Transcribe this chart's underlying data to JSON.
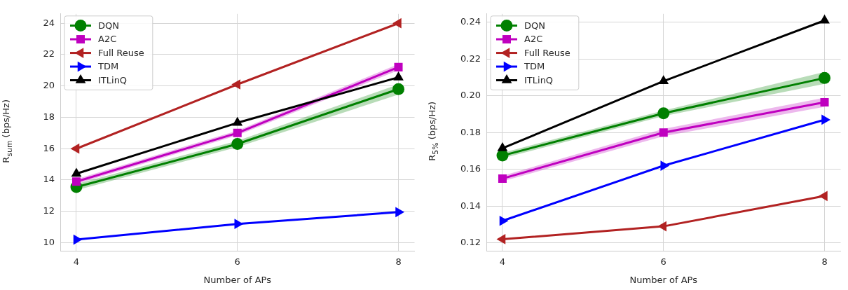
{
  "chart_data": [
    {
      "type": "line",
      "xlabel": "Number of APs",
      "ylabel": "R$_{sum}$ (bps/Hz)",
      "x": [
        4,
        6,
        8
      ],
      "xlim": [
        3.8,
        8.2
      ],
      "xticks": [
        4,
        6,
        8
      ],
      "ylim": [
        9.45,
        24.6
      ],
      "yticks": [
        10,
        12,
        14,
        16,
        18,
        20,
        22,
        24
      ],
      "grid": true,
      "legend": "top left",
      "line_style": "solid",
      "series": [
        {
          "name": "DQN",
          "color": "#008000",
          "marker": "circle",
          "values": [
            13.55,
            16.3,
            19.8
          ],
          "lower": [
            13.35,
            16.1,
            19.45
          ],
          "upper": [
            13.75,
            16.5,
            20.1
          ]
        },
        {
          "name": "A2C",
          "color": "#bf00bf",
          "marker": "square",
          "values": [
            13.9,
            17.0,
            21.2
          ],
          "lower": [
            13.75,
            16.85,
            21.0
          ],
          "upper": [
            14.05,
            17.15,
            21.4
          ]
        },
        {
          "name": "Full Reuse",
          "color": "#b22222",
          "marker": "triangle-left",
          "values": [
            16.0,
            20.1,
            24.0
          ]
        },
        {
          "name": "TDM",
          "color": "#0000ff",
          "marker": "triangle-right",
          "values": [
            10.2,
            11.2,
            11.95
          ]
        },
        {
          "name": "ITLinQ",
          "color": "#000000",
          "marker": "triangle",
          "values": [
            14.4,
            17.65,
            20.55
          ]
        }
      ]
    },
    {
      "type": "line",
      "xlabel": "Number of APs",
      "ylabel": "R$_{5%}$ (bps/Hz)",
      "x": [
        4,
        6,
        8
      ],
      "xlim": [
        3.8,
        8.2
      ],
      "xticks": [
        4,
        6,
        8
      ],
      "ylim": [
        0.1154,
        0.2446
      ],
      "yticks": [
        0.12,
        0.14,
        0.16,
        0.18,
        {
          "value": 0.2,
          "label": "0.20"
        },
        0.22,
        0.24
      ],
      "grid": true,
      "legend": "top left",
      "line_style": "solid",
      "series": [
        {
          "name": "DQN",
          "color": "#008000",
          "marker": "circle",
          "values": [
            0.1675,
            0.1905,
            0.2097
          ],
          "lower": [
            0.166,
            0.189,
            0.2065
          ],
          "upper": [
            0.169,
            0.192,
            0.213
          ]
        },
        {
          "name": "A2C",
          "color": "#bf00bf",
          "marker": "square",
          "values": [
            0.155,
            0.18,
            0.1965
          ],
          "lower": [
            0.1535,
            0.178,
            0.194
          ],
          "upper": [
            0.1565,
            0.182,
            0.199
          ]
        },
        {
          "name": "Full Reuse",
          "color": "#b22222",
          "marker": "triangle-left",
          "values": [
            0.122,
            0.129,
            0.1455
          ]
        },
        {
          "name": "TDM",
          "color": "#0000ff",
          "marker": "triangle-right",
          "values": [
            0.132,
            0.162,
            0.187
          ]
        },
        {
          "name": "ITLinQ",
          "color": "#000000",
          "marker": "triangle",
          "values": [
            0.1715,
            0.208,
            0.241
          ]
        }
      ]
    }
  ]
}
